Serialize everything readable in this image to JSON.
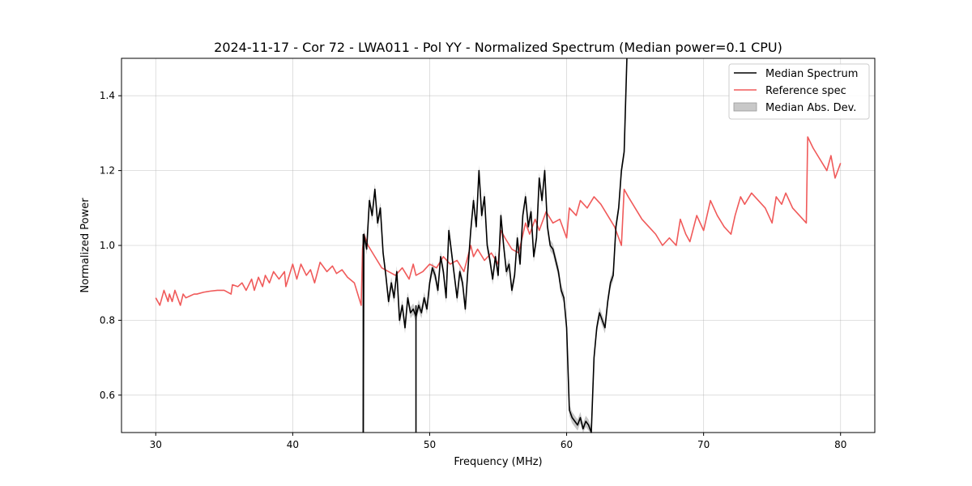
{
  "chart_data": {
    "type": "line",
    "title": "2024-11-17 - Cor 72 - LWA011 - Pol YY - Normalized Spectrum (Median power=0.1 CPU)",
    "xlabel": "Frequency (MHz)",
    "ylabel": "Normalized Power",
    "xlim": [
      27.5,
      82.5
    ],
    "ylim": [
      0.5,
      1.5
    ],
    "xticks": [
      30,
      40,
      50,
      60,
      70,
      80
    ],
    "yticks": [
      0.6,
      0.8,
      1.0,
      1.2,
      1.4
    ],
    "xtick_labels": [
      "30",
      "40",
      "50",
      "60",
      "70",
      "80"
    ],
    "ytick_labels": [
      "0.6",
      "0.8",
      "1.0",
      "1.2",
      "1.4"
    ],
    "grid": true,
    "legend": {
      "position": "top-right",
      "entries": [
        "Median Spectrum",
        "Reference spec",
        "Median Abs. Dev."
      ]
    },
    "series": [
      {
        "name": "Reference spec",
        "color": "#f05a5a",
        "x": [
          30.0,
          30.3,
          30.6,
          30.9,
          31.0,
          31.2,
          31.4,
          31.6,
          31.8,
          32.0,
          32.2,
          32.5,
          32.8,
          33.0,
          33.5,
          34.0,
          34.5,
          35.0,
          35.5,
          35.6,
          36.0,
          36.3,
          36.6,
          37.0,
          37.2,
          37.5,
          37.8,
          38.0,
          38.3,
          38.6,
          39.0,
          39.4,
          39.5,
          40.0,
          40.3,
          40.6,
          41.0,
          41.3,
          41.6,
          42.0,
          42.5,
          42.9,
          43.2,
          43.6,
          44.0,
          44.5,
          45.0,
          45.1,
          45.2,
          45.5,
          46.0,
          46.5,
          47.0,
          47.5,
          48.0,
          48.5,
          48.8,
          49.0,
          49.5,
          50.0,
          50.5,
          51.0,
          51.5,
          52.0,
          52.5,
          53.0,
          53.2,
          53.5,
          54.0,
          54.5,
          55.0,
          55.2,
          55.5,
          56.0,
          56.5,
          57.0,
          57.3,
          57.7,
          58.0,
          58.5,
          59.0,
          59.5,
          60.0,
          60.2,
          60.7,
          61.0,
          61.5,
          62.0,
          62.5,
          63.0,
          63.5,
          64.0,
          64.2,
          64.5,
          65.0,
          65.5,
          66.0,
          66.5,
          67.0,
          67.5,
          68.0,
          68.3,
          68.7,
          69.0,
          69.5,
          70.0,
          70.5,
          71.0,
          71.5,
          72.0,
          72.3,
          72.7,
          73.0,
          73.5,
          74.0,
          74.5,
          75.0,
          75.3,
          75.7,
          76.0,
          76.5,
          77.0,
          77.5,
          77.6,
          78.0,
          78.5,
          79.0,
          79.3,
          79.6,
          80.0
        ],
        "y": [
          0.86,
          0.84,
          0.88,
          0.85,
          0.87,
          0.85,
          0.88,
          0.86,
          0.84,
          0.87,
          0.86,
          0.865,
          0.87,
          0.87,
          0.875,
          0.878,
          0.88,
          0.88,
          0.87,
          0.895,
          0.89,
          0.9,
          0.88,
          0.91,
          0.88,
          0.915,
          0.89,
          0.92,
          0.9,
          0.93,
          0.91,
          0.93,
          0.89,
          0.95,
          0.91,
          0.95,
          0.92,
          0.935,
          0.9,
          0.955,
          0.93,
          0.945,
          0.925,
          0.935,
          0.915,
          0.9,
          0.84,
          0.99,
          1.03,
          1.0,
          0.97,
          0.94,
          0.93,
          0.92,
          0.94,
          0.91,
          0.95,
          0.92,
          0.93,
          0.95,
          0.94,
          0.97,
          0.95,
          0.96,
          0.93,
          1.0,
          0.97,
          0.99,
          0.96,
          0.98,
          0.95,
          1.04,
          1.02,
          0.99,
          0.98,
          1.06,
          1.03,
          1.07,
          1.04,
          1.09,
          1.06,
          1.07,
          1.02,
          1.1,
          1.08,
          1.12,
          1.1,
          1.13,
          1.11,
          1.08,
          1.05,
          1.0,
          1.15,
          1.13,
          1.1,
          1.07,
          1.05,
          1.03,
          1.0,
          1.02,
          1.0,
          1.07,
          1.03,
          1.01,
          1.08,
          1.04,
          1.12,
          1.08,
          1.05,
          1.03,
          1.08,
          1.13,
          1.11,
          1.14,
          1.12,
          1.1,
          1.06,
          1.13,
          1.11,
          1.14,
          1.1,
          1.08,
          1.06,
          1.29,
          1.26,
          1.23,
          1.2,
          1.24,
          1.18,
          1.22
        ]
      },
      {
        "name": "Median Spectrum",
        "color": "#000000",
        "x": [
          45.15,
          45.2,
          45.4,
          45.6,
          45.8,
          46.0,
          46.2,
          46.4,
          46.6,
          46.8,
          47.0,
          47.2,
          47.4,
          47.6,
          47.8,
          48.0,
          48.2,
          48.4,
          48.6,
          48.8,
          49.0,
          49.2,
          49.4,
          49.6,
          49.8,
          50.0,
          50.2,
          50.4,
          50.6,
          50.8,
          51.0,
          51.2,
          51.4,
          51.6,
          51.8,
          52.0,
          52.2,
          52.4,
          52.6,
          52.8,
          53.0,
          53.2,
          53.4,
          53.6,
          53.8,
          54.0,
          54.2,
          54.4,
          54.6,
          54.8,
          55.0,
          55.2,
          55.4,
          55.6,
          55.8,
          56.0,
          56.2,
          56.4,
          56.6,
          56.8,
          57.0,
          57.2,
          57.4,
          57.6,
          57.8,
          58.0,
          58.2,
          58.4,
          58.6,
          58.8,
          59.0,
          59.2,
          59.4,
          59.6,
          59.8,
          60.0,
          60.2,
          60.4,
          60.6,
          60.8,
          61.0,
          61.2,
          61.4,
          61.6,
          61.8,
          62.0,
          62.2,
          62.4,
          62.6,
          62.8,
          63.0,
          63.2,
          63.4,
          63.6,
          63.8,
          64.0,
          64.2,
          64.4
        ],
        "y": [
          0.5,
          1.03,
          0.99,
          1.12,
          1.08,
          1.15,
          1.06,
          1.1,
          0.98,
          0.92,
          0.85,
          0.9,
          0.86,
          0.93,
          0.8,
          0.84,
          0.78,
          0.86,
          0.82,
          0.83,
          0.81,
          0.84,
          0.82,
          0.86,
          0.83,
          0.9,
          0.94,
          0.92,
          0.88,
          0.97,
          0.93,
          0.86,
          1.04,
          0.98,
          0.92,
          0.86,
          0.93,
          0.9,
          0.83,
          0.94,
          1.04,
          1.12,
          1.05,
          1.2,
          1.08,
          1.13,
          1.0,
          0.96,
          0.91,
          0.97,
          0.92,
          1.08,
          1.0,
          0.93,
          0.95,
          0.88,
          0.92,
          1.02,
          0.95,
          1.08,
          1.13,
          1.05,
          1.09,
          0.97,
          1.02,
          1.18,
          1.12,
          1.2,
          1.05,
          1.0,
          0.99,
          0.96,
          0.93,
          0.88,
          0.86,
          0.78,
          0.56,
          0.54,
          0.53,
          0.52,
          0.54,
          0.51,
          0.53,
          0.52,
          0.5,
          0.7,
          0.78,
          0.82,
          0.8,
          0.78,
          0.85,
          0.9,
          0.92,
          1.05,
          1.1,
          1.2,
          1.25,
          1.5
        ]
      }
    ]
  }
}
